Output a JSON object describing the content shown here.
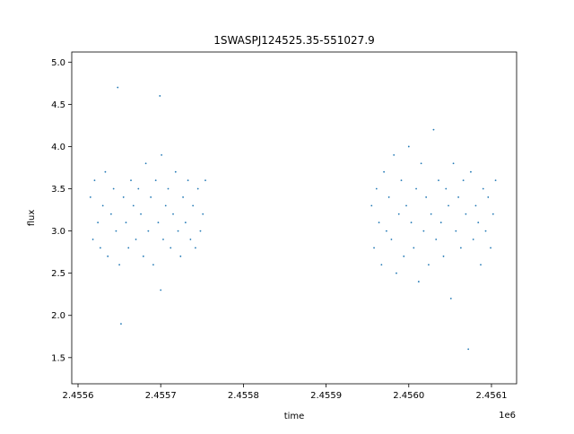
{
  "chart_data": {
    "type": "scatter",
    "title": "1SWASPJ124525.35-551027.9",
    "x_label": "time",
    "y_label": "flux",
    "x_offset_label": "1e6",
    "color": "#1f77b4",
    "xlim": [
      2455592.4,
      2456130.4
    ],
    "ylim": [
      1.19,
      5.12
    ],
    "xticks": [
      {
        "value": 2455600,
        "label": "2.4556"
      },
      {
        "value": 2455700,
        "label": "2.4557"
      },
      {
        "value": 2455800,
        "label": "2.4558"
      },
      {
        "value": 2455900,
        "label": "2.4559"
      },
      {
        "value": 2456000,
        "label": "2.4560"
      },
      {
        "value": 2456100,
        "label": "2.4561"
      }
    ],
    "yticks": [
      1.5,
      {
        "value": 2,
        "label": "2.0"
      },
      2.5,
      {
        "value": 3,
        "label": "3.0"
      },
      3.5,
      {
        "value": 4,
        "label": "4.0"
      },
      4.5,
      {
        "value": 5,
        "label": "5.0"
      }
    ],
    "x": [
      2455615,
      2455618,
      2455620,
      2455624,
      2455627,
      2455630,
      2455633,
      2455636,
      2455640,
      2455643,
      2455646,
      2455648,
      2455650,
      2455652,
      2455655,
      2455658,
      2455661,
      2455664,
      2455667,
      2455670,
      2455673,
      2455676,
      2455679,
      2455682,
      2455685,
      2455688,
      2455691,
      2455694,
      2455697,
      2455699,
      2455700,
      2455701,
      2455703,
      2455706,
      2455709,
      2455712,
      2455715,
      2455718,
      2455721,
      2455724,
      2455727,
      2455730,
      2455733,
      2455736,
      2455739,
      2455742,
      2455745,
      2455748,
      2455751,
      2455754,
      2455955,
      2455958,
      2455961,
      2455964,
      2455967,
      2455970,
      2455973,
      2455976,
      2455979,
      2455982,
      2455985,
      2455988,
      2455991,
      2455994,
      2455997,
      2456000,
      2456003,
      2456006,
      2456009,
      2456012,
      2456015,
      2456018,
      2456021,
      2456024,
      2456027,
      2456030,
      2456033,
      2456036,
      2456039,
      2456042,
      2456045,
      2456048,
      2456051,
      2456054,
      2456057,
      2456060,
      2456063,
      2456066,
      2456069,
      2456072,
      2456075,
      2456078,
      2456081,
      2456084,
      2456087,
      2456090,
      2456093,
      2456096,
      2456099,
      2456102,
      2456105
    ],
    "values": [
      3.4,
      2.9,
      3.6,
      3.1,
      2.8,
      3.3,
      3.7,
      2.7,
      3.2,
      3.5,
      3.0,
      4.7,
      2.6,
      1.9,
      3.4,
      3.1,
      2.8,
      3.6,
      3.3,
      2.9,
      3.5,
      3.2,
      2.7,
      3.8,
      3.0,
      3.4,
      2.6,
      3.6,
      3.1,
      4.6,
      2.3,
      3.9,
      2.9,
      3.3,
      3.5,
      2.8,
      3.2,
      3.7,
      3.0,
      2.7,
      3.4,
      3.1,
      3.6,
      2.9,
      3.3,
      2.8,
      3.5,
      3.0,
      3.2,
      3.6,
      3.3,
      2.8,
      3.5,
      3.1,
      2.6,
      3.7,
      3.0,
      3.4,
      2.9,
      3.9,
      2.5,
      3.2,
      3.6,
      2.7,
      3.3,
      4.0,
      3.1,
      2.8,
      3.5,
      2.4,
      3.8,
      3.0,
      3.4,
      2.6,
      3.2,
      4.2,
      2.9,
      3.6,
      3.1,
      2.7,
      3.5,
      3.3,
      2.2,
      3.8,
      3.0,
      3.4,
      2.8,
      3.6,
      3.2,
      1.6,
      3.7,
      2.9,
      3.3,
      3.1,
      2.6,
      3.5,
      3.0,
      3.4,
      2.8,
      3.2,
      3.6
    ]
  }
}
